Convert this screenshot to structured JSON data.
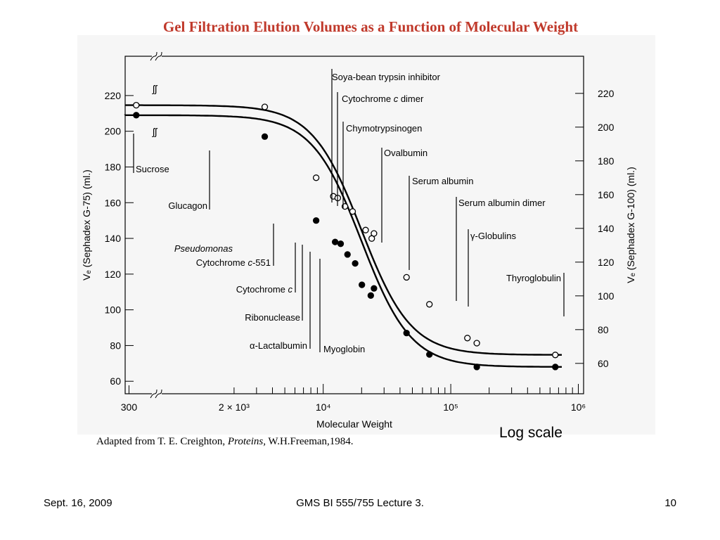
{
  "slide": {
    "title": "Gel Filtration Elution Volumes as a Function of Molecular Weight",
    "credit": {
      "prefix": "Adapted from T. E. Creighton, ",
      "book": "Proteins,",
      "suffix": " W.H.Freeman,1984."
    },
    "note": "Log scale",
    "footer": {
      "date": "Sept. 16, 2009",
      "course": "GMS BI 555/755 Lecture 3.",
      "page": "10"
    }
  },
  "colors": {
    "title": "#c0392b",
    "panel": "#f6f6f6",
    "ink": "#000000"
  },
  "chart_data": {
    "type": "line",
    "x_scale": "log",
    "xlabel": "Molecular Weight",
    "x_ticks": [
      {
        "value": 300,
        "label": "300"
      },
      {
        "value": 2000,
        "label": "2 × 10³"
      },
      {
        "value": 10000,
        "label": "10⁴"
      },
      {
        "value": 100000,
        "label": "10⁵"
      },
      {
        "value": 1000000,
        "label": "10⁶"
      }
    ],
    "xlim": [
      280,
      1100000
    ],
    "y_left": {
      "label": "Vₑ (Sephadex G-75) (ml.)",
      "ticks": [
        60,
        80,
        100,
        120,
        140,
        160,
        180,
        200,
        220
      ],
      "lim": [
        53,
        242
      ]
    },
    "y_right": {
      "label": "Vₑ (Sephadex G-100) (ml.)",
      "ticks": [
        60,
        80,
        100,
        120,
        140,
        160,
        180,
        200,
        220
      ],
      "lim": [
        42,
        242
      ]
    },
    "grid": false,
    "series": [
      {
        "name": "Sephadex G-75",
        "marker": "filled",
        "axis": "left",
        "points": [
          {
            "x": 342,
            "y": 209,
            "label": "Sucrose"
          },
          {
            "x": 3480,
            "y": 197,
            "label": "Glucagon"
          },
          {
            "x": 8800,
            "y": 150,
            "label": "Pseudomonas Cytochrome c-551"
          },
          {
            "x": 12400,
            "y": 138,
            "label": "Cytochrome c"
          },
          {
            "x": 13700,
            "y": 137,
            "label": "Ribonuclease"
          },
          {
            "x": 15500,
            "y": 131,
            "label": "α-Lactalbumin"
          },
          {
            "x": 17800,
            "y": 126,
            "label": "Myoglobin"
          },
          {
            "x": 20100,
            "y": 114,
            "label": "Chymotrypsinogen"
          },
          {
            "x": 23600,
            "y": 108,
            "label": ""
          },
          {
            "x": 25000,
            "y": 112,
            "label": ""
          },
          {
            "x": 45000,
            "y": 87,
            "label": "Ovalbumin"
          },
          {
            "x": 68000,
            "y": 75,
            "label": "Serum albumin"
          },
          {
            "x": 160000,
            "y": 68,
            "label": "γ-Globulins"
          },
          {
            "x": 660000,
            "y": 68,
            "label": "Thyroglobulin"
          }
        ]
      },
      {
        "name": "Sephadex G-100",
        "marker": "open",
        "axis": "right",
        "points": [
          {
            "x": 342,
            "y": 213,
            "label": "Sucrose"
          },
          {
            "x": 3480,
            "y": 212,
            "label": "Glucagon"
          },
          {
            "x": 8800,
            "y": 170,
            "label": ""
          },
          {
            "x": 12000,
            "y": 159,
            "label": ""
          },
          {
            "x": 13000,
            "y": 158,
            "label": ""
          },
          {
            "x": 14800,
            "y": 153,
            "label": ""
          },
          {
            "x": 17000,
            "y": 150,
            "label": ""
          },
          {
            "x": 21500,
            "y": 139,
            "label": "Soya-bean trypsin inhibitor"
          },
          {
            "x": 24000,
            "y": 134,
            "label": "Cytochrome c dimer"
          },
          {
            "x": 25000,
            "y": 137,
            "label": "Chymotrypsinogen"
          },
          {
            "x": 45000,
            "y": 111,
            "label": "Ovalbumin"
          },
          {
            "x": 68000,
            "y": 95,
            "label": "Serum albumin"
          },
          {
            "x": 135000,
            "y": 75,
            "label": "Serum albumin dimer"
          },
          {
            "x": 160000,
            "y": 72,
            "label": "γ-Globulins"
          },
          {
            "x": 660000,
            "y": 65,
            "label": "Thyroglobulin"
          }
        ]
      }
    ],
    "annotations": [
      {
        "text": "Soya-bean trypsin inhibitor",
        "italic_part": ""
      },
      {
        "text": "Cytochrome c dimer",
        "italic_part": "c"
      },
      {
        "text": "Chymotrypsinogen",
        "italic_part": ""
      },
      {
        "text": "Ovalbumin",
        "italic_part": ""
      },
      {
        "text": "Serum albumin",
        "italic_part": ""
      },
      {
        "text": "Serum albumin dimer",
        "italic_part": ""
      },
      {
        "text": "γ-Globulins",
        "italic_part": ""
      },
      {
        "text": "Thyroglobulin",
        "italic_part": ""
      },
      {
        "text": "Sucrose",
        "italic_part": ""
      },
      {
        "text": "Glucagon",
        "italic_part": ""
      },
      {
        "text": "Pseudomonas",
        "italic_part": "all"
      },
      {
        "text": "Cytochrome c-551",
        "italic_part": "c"
      },
      {
        "text": "Cytochrome c",
        "italic_part": "c"
      },
      {
        "text": "Ribonuclease",
        "italic_part": ""
      },
      {
        "text": "α-Lactalbumin",
        "italic_part": ""
      },
      {
        "text": "Myoglobin",
        "italic_part": ""
      }
    ]
  }
}
